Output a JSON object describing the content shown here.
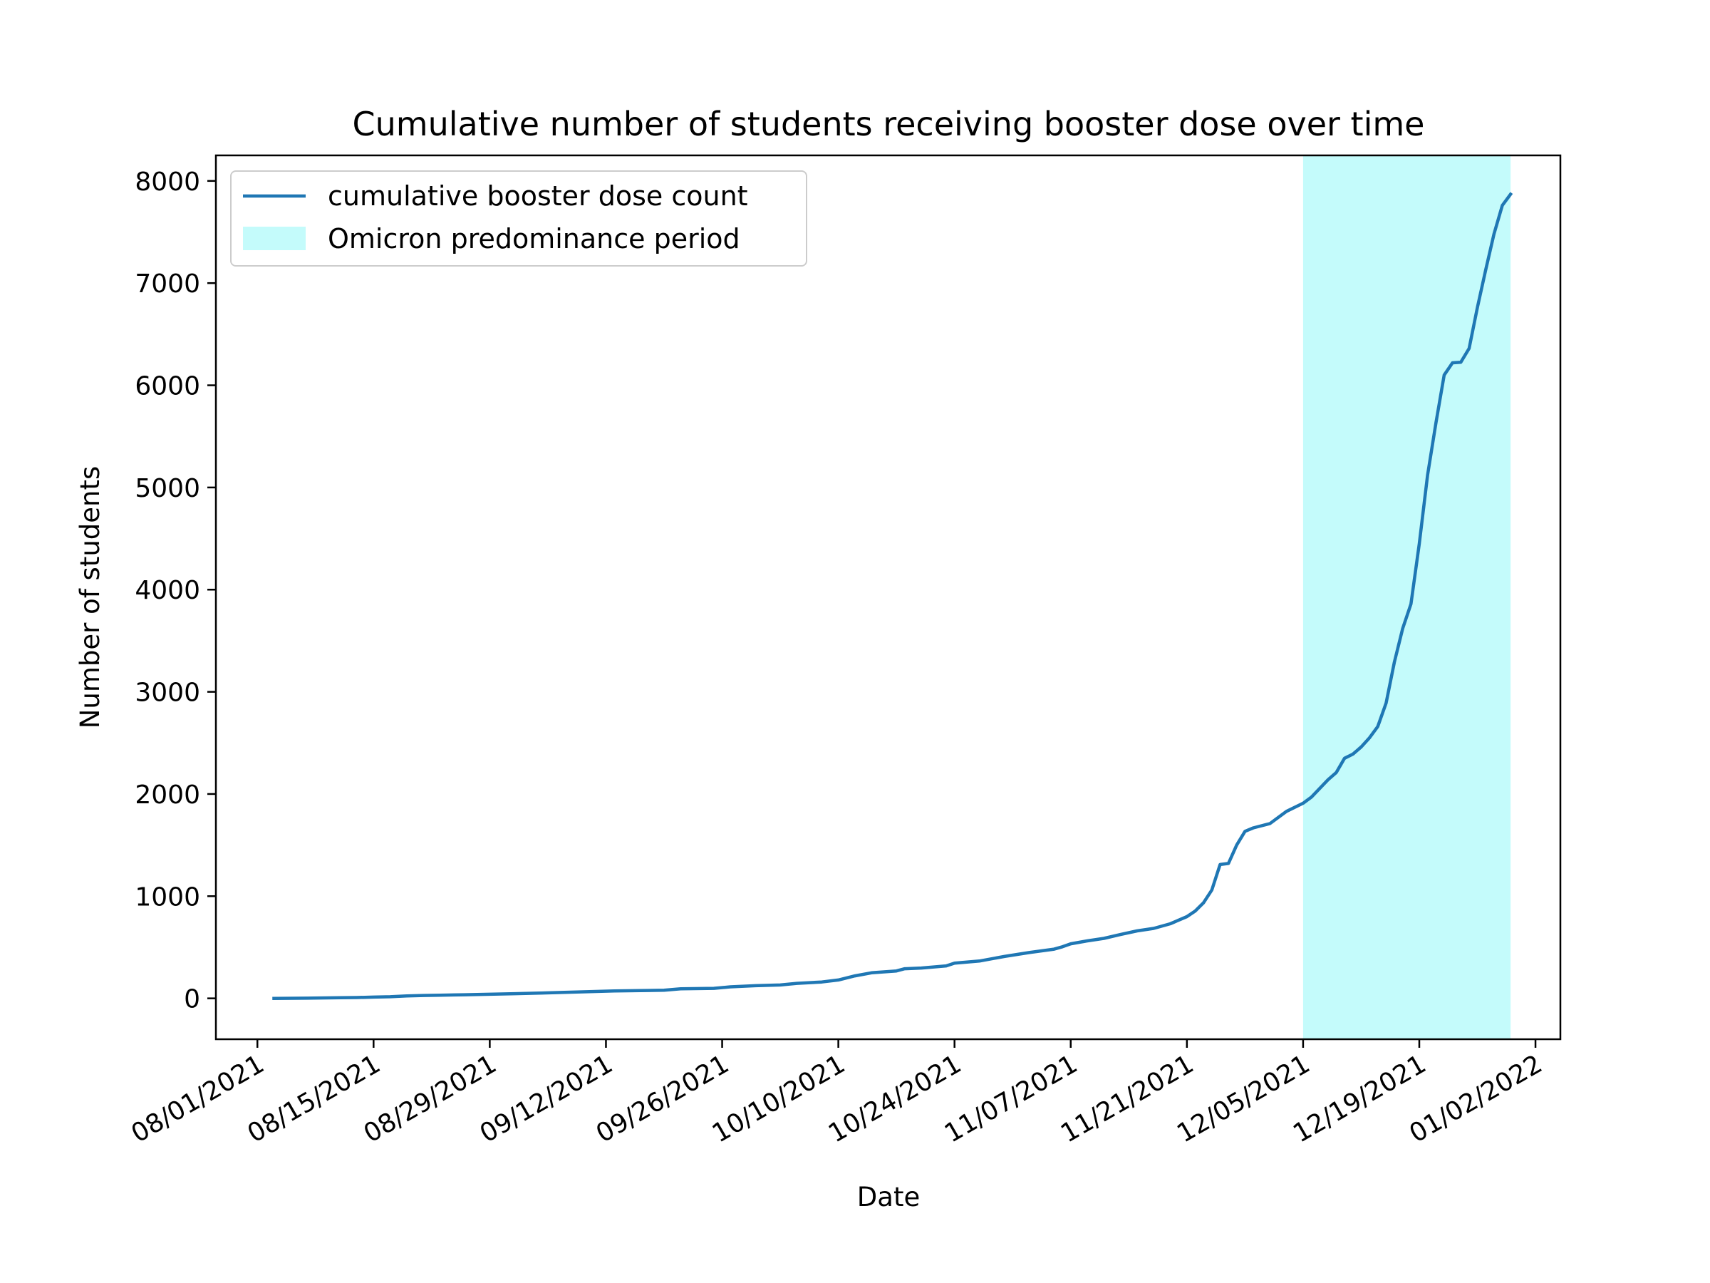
{
  "chart_data": {
    "type": "line",
    "title": "Cumulative number of students receiving booster dose over time",
    "xlabel": "Date",
    "ylabel": "Number of students",
    "xlim": [
      "2021-07-27",
      "2022-01-05"
    ],
    "ylim": [
      -400,
      8250
    ],
    "x_ticks": [
      {
        "date": "2021-08-01",
        "label": "08/01/2021"
      },
      {
        "date": "2021-08-15",
        "label": "08/15/2021"
      },
      {
        "date": "2021-08-29",
        "label": "08/29/2021"
      },
      {
        "date": "2021-09-12",
        "label": "09/12/2021"
      },
      {
        "date": "2021-09-26",
        "label": "09/26/2021"
      },
      {
        "date": "2021-10-10",
        "label": "10/10/2021"
      },
      {
        "date": "2021-10-24",
        "label": "10/24/2021"
      },
      {
        "date": "2021-11-07",
        "label": "11/07/2021"
      },
      {
        "date": "2021-11-21",
        "label": "11/21/2021"
      },
      {
        "date": "2021-12-05",
        "label": "12/05/2021"
      },
      {
        "date": "2021-12-19",
        "label": "12/19/2021"
      },
      {
        "date": "2022-01-02",
        "label": "01/02/2022"
      }
    ],
    "y_ticks": [
      {
        "value": 0,
        "label": "0"
      },
      {
        "value": 1000,
        "label": "1000"
      },
      {
        "value": 2000,
        "label": "2000"
      },
      {
        "value": 3000,
        "label": "3000"
      },
      {
        "value": 4000,
        "label": "4000"
      },
      {
        "value": 5000,
        "label": "5000"
      },
      {
        "value": 6000,
        "label": "6000"
      },
      {
        "value": 7000,
        "label": "7000"
      },
      {
        "value": 8000,
        "label": "8000"
      }
    ],
    "grid": false,
    "legend_position": "top-left",
    "series": [
      {
        "name": "cumulative booster dose count",
        "color": "#1f77b4",
        "points": [
          {
            "x": "2021-08-03",
            "y": 0
          },
          {
            "x": "2021-08-07",
            "y": 2
          },
          {
            "x": "2021-08-11",
            "y": 6
          },
          {
            "x": "2021-08-13",
            "y": 8
          },
          {
            "x": "2021-08-15",
            "y": 12
          },
          {
            "x": "2021-08-17",
            "y": 16
          },
          {
            "x": "2021-08-19",
            "y": 24
          },
          {
            "x": "2021-08-21",
            "y": 28
          },
          {
            "x": "2021-08-23",
            "y": 31
          },
          {
            "x": "2021-08-26",
            "y": 35
          },
          {
            "x": "2021-08-29",
            "y": 40
          },
          {
            "x": "2021-09-01",
            "y": 46
          },
          {
            "x": "2021-09-04",
            "y": 51
          },
          {
            "x": "2021-09-07",
            "y": 58
          },
          {
            "x": "2021-09-10",
            "y": 66
          },
          {
            "x": "2021-09-13",
            "y": 72
          },
          {
            "x": "2021-09-17",
            "y": 77
          },
          {
            "x": "2021-09-19",
            "y": 80
          },
          {
            "x": "2021-09-21",
            "y": 93
          },
          {
            "x": "2021-09-25",
            "y": 98
          },
          {
            "x": "2021-09-27",
            "y": 113
          },
          {
            "x": "2021-09-30",
            "y": 124
          },
          {
            "x": "2021-10-03",
            "y": 131
          },
          {
            "x": "2021-10-05",
            "y": 147
          },
          {
            "x": "2021-10-08",
            "y": 160
          },
          {
            "x": "2021-10-10",
            "y": 180
          },
          {
            "x": "2021-10-12",
            "y": 220
          },
          {
            "x": "2021-10-14",
            "y": 250
          },
          {
            "x": "2021-10-17",
            "y": 268
          },
          {
            "x": "2021-10-18",
            "y": 290
          },
          {
            "x": "2021-10-20",
            "y": 297
          },
          {
            "x": "2021-10-23",
            "y": 318
          },
          {
            "x": "2021-10-24",
            "y": 345
          },
          {
            "x": "2021-10-27",
            "y": 365
          },
          {
            "x": "2021-10-30",
            "y": 410
          },
          {
            "x": "2021-11-02",
            "y": 448
          },
          {
            "x": "2021-11-05",
            "y": 482
          },
          {
            "x": "2021-11-06",
            "y": 505
          },
          {
            "x": "2021-11-07",
            "y": 534
          },
          {
            "x": "2021-11-09",
            "y": 563
          },
          {
            "x": "2021-11-11",
            "y": 587
          },
          {
            "x": "2021-11-13",
            "y": 625
          },
          {
            "x": "2021-11-15",
            "y": 660
          },
          {
            "x": "2021-11-17",
            "y": 685
          },
          {
            "x": "2021-11-19",
            "y": 730
          },
          {
            "x": "2021-11-21",
            "y": 800
          },
          {
            "x": "2021-11-22",
            "y": 855
          },
          {
            "x": "2021-11-23",
            "y": 935
          },
          {
            "x": "2021-11-24",
            "y": 1060
          },
          {
            "x": "2021-11-25",
            "y": 1310
          },
          {
            "x": "2021-11-26",
            "y": 1320
          },
          {
            "x": "2021-11-27",
            "y": 1500
          },
          {
            "x": "2021-11-28",
            "y": 1635
          },
          {
            "x": "2021-11-29",
            "y": 1668
          },
          {
            "x": "2021-12-01",
            "y": 1710
          },
          {
            "x": "2021-12-03",
            "y": 1830
          },
          {
            "x": "2021-12-05",
            "y": 1910
          },
          {
            "x": "2021-12-06",
            "y": 1970
          },
          {
            "x": "2021-12-08",
            "y": 2140
          },
          {
            "x": "2021-12-09",
            "y": 2210
          },
          {
            "x": "2021-12-10",
            "y": 2350
          },
          {
            "x": "2021-12-11",
            "y": 2390
          },
          {
            "x": "2021-12-12",
            "y": 2460
          },
          {
            "x": "2021-12-13",
            "y": 2550
          },
          {
            "x": "2021-12-14",
            "y": 2660
          },
          {
            "x": "2021-12-15",
            "y": 2890
          },
          {
            "x": "2021-12-16",
            "y": 3290
          },
          {
            "x": "2021-12-17",
            "y": 3620
          },
          {
            "x": "2021-12-18",
            "y": 3860
          },
          {
            "x": "2021-12-19",
            "y": 4450
          },
          {
            "x": "2021-12-20",
            "y": 5120
          },
          {
            "x": "2021-12-21",
            "y": 5630
          },
          {
            "x": "2021-12-22",
            "y": 6100
          },
          {
            "x": "2021-12-23",
            "y": 6220
          },
          {
            "x": "2021-12-24",
            "y": 6225
          },
          {
            "x": "2021-12-25",
            "y": 6360
          },
          {
            "x": "2021-12-26",
            "y": 6760
          },
          {
            "x": "2021-12-27",
            "y": 7130
          },
          {
            "x": "2021-12-28",
            "y": 7480
          },
          {
            "x": "2021-12-29",
            "y": 7760
          },
          {
            "x": "2021-12-30",
            "y": 7870
          }
        ]
      }
    ],
    "shaded_regions": [
      {
        "name": "Omicron predominance period",
        "x_start": "2021-12-05",
        "x_end": "2021-12-30",
        "color": "#c4fbfb"
      }
    ]
  }
}
